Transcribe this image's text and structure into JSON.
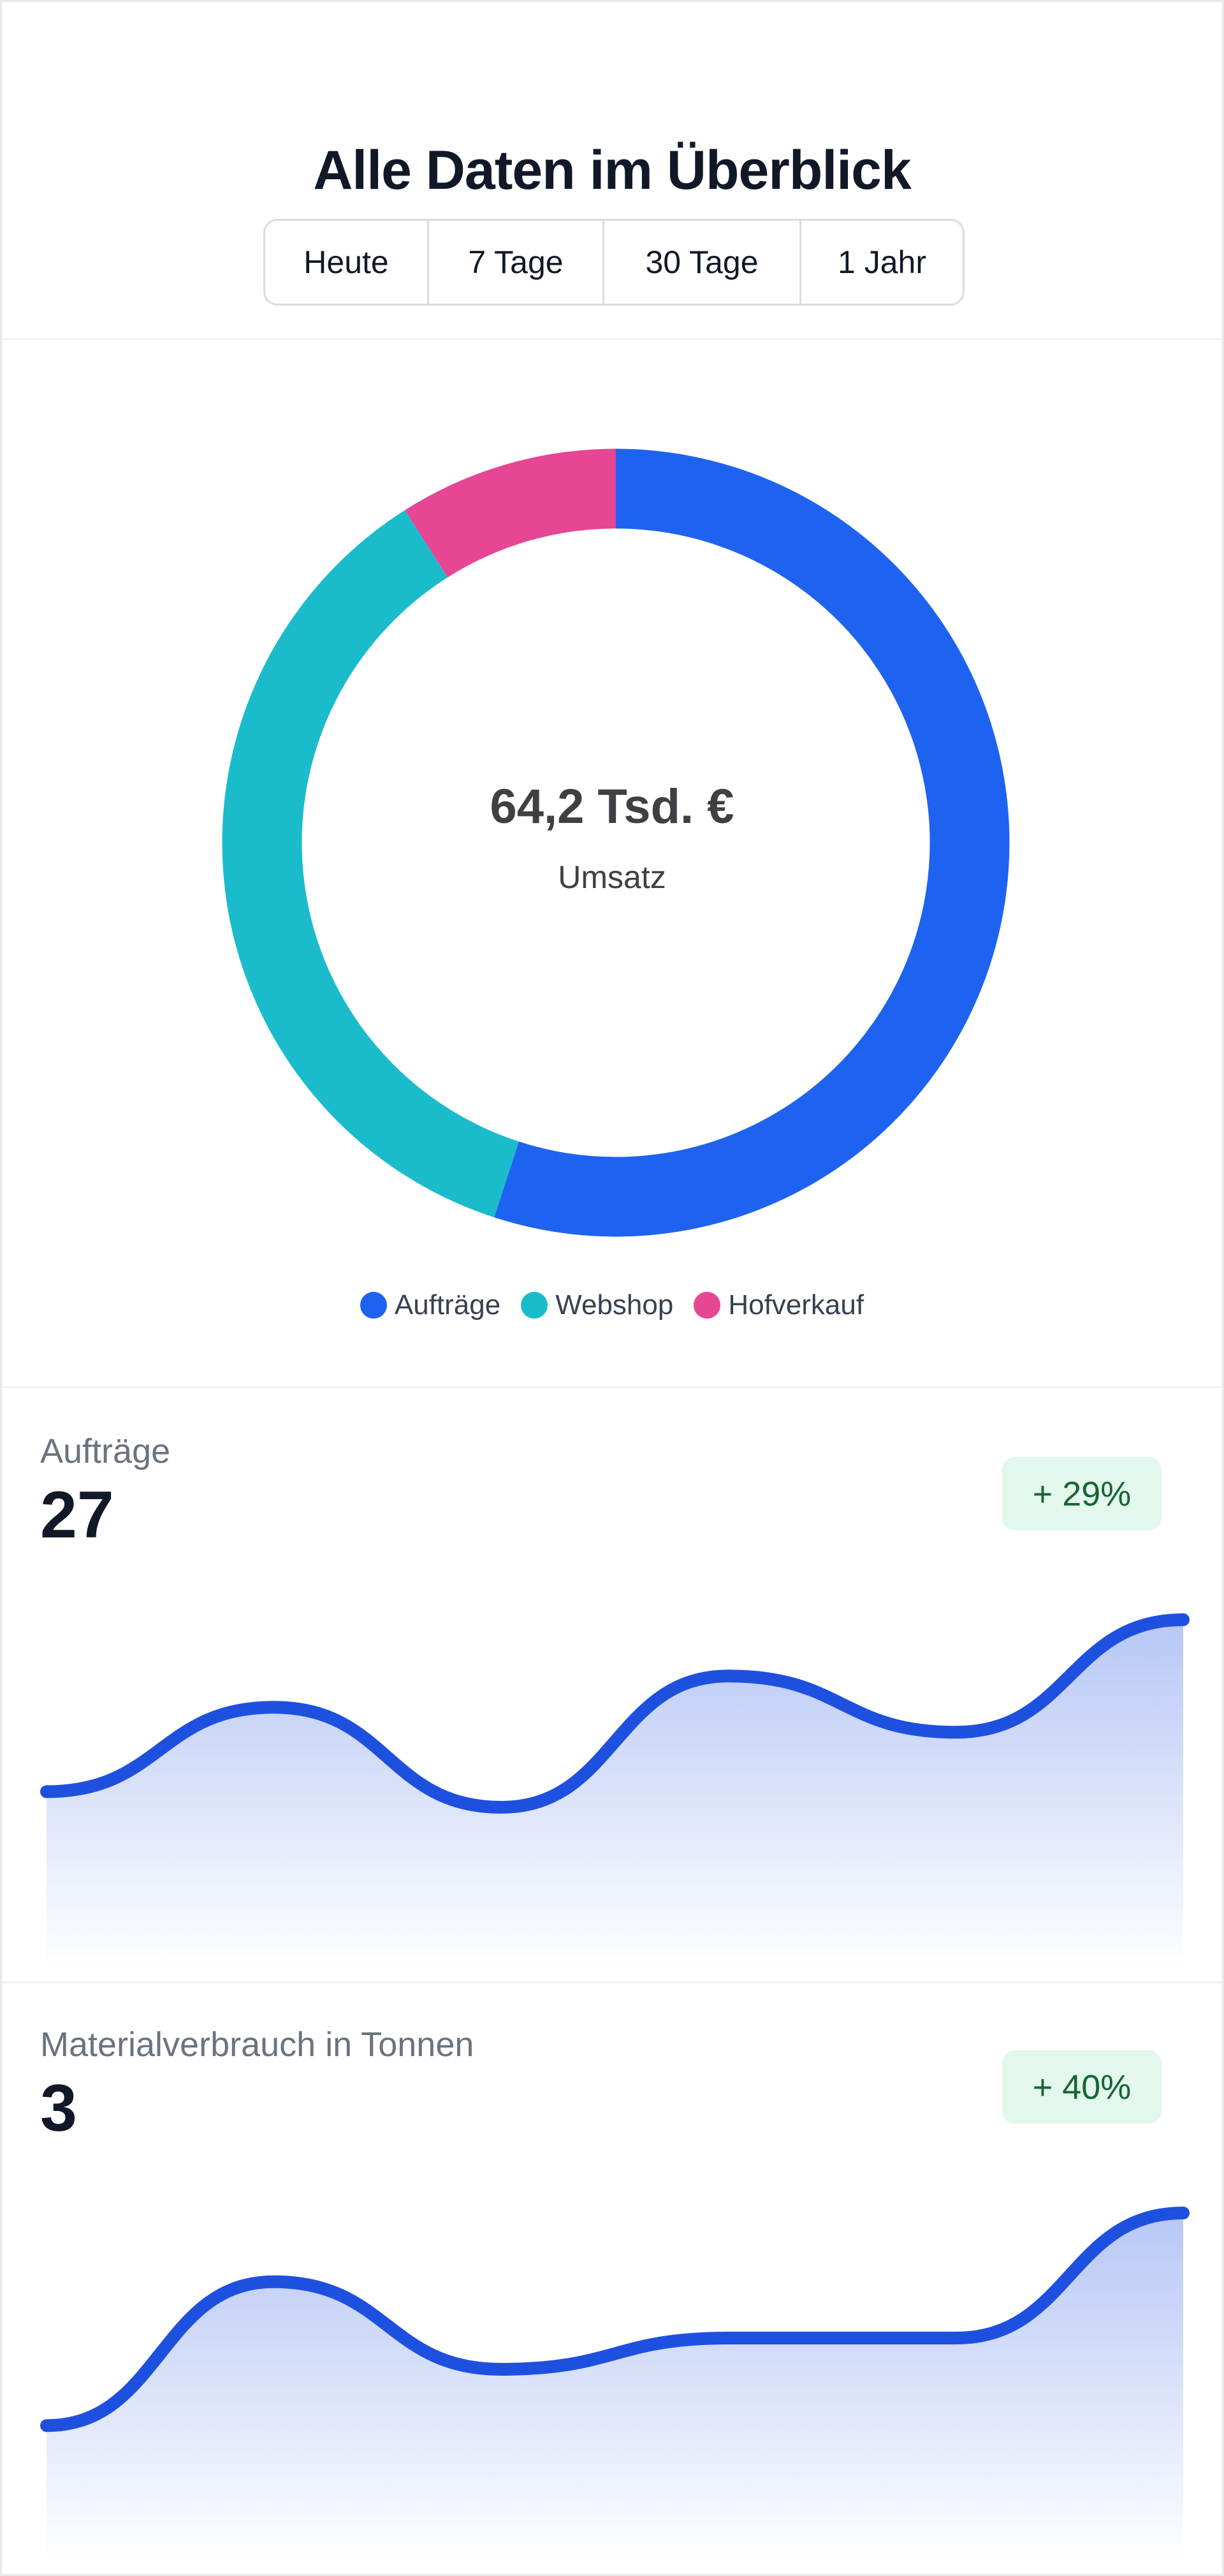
{
  "header": {
    "title": "Alle Daten im Überblick",
    "ranges": [
      "Heute",
      "7 Tage",
      "30 Tage",
      "1 Jahr"
    ]
  },
  "donut": {
    "center_value": "64,2 Tsd. €",
    "center_label": "Umsatz",
    "segments": [
      {
        "name": "Aufträge",
        "value": 55,
        "color": "#1e63f0"
      },
      {
        "name": "Webshop",
        "value": 36,
        "color": "#1abccc"
      },
      {
        "name": "Hofverkauf",
        "value": 9,
        "color": "#e64694"
      }
    ]
  },
  "metrics": [
    {
      "label": "Aufträge",
      "value": "27",
      "change": "+ 29%",
      "series": [
        0.45,
        0.72,
        0.4,
        0.82,
        0.64,
        1.0
      ]
    },
    {
      "label": "Materialverbrauch in Tonnen",
      "value": "3",
      "change": "+ 40%",
      "series": [
        0.32,
        0.78,
        0.5,
        0.6,
        0.6,
        1.0
      ]
    }
  ],
  "colors": {
    "line": "#1e50e0",
    "badge_bg": "#e3f7ec",
    "badge_text": "#166534"
  }
}
